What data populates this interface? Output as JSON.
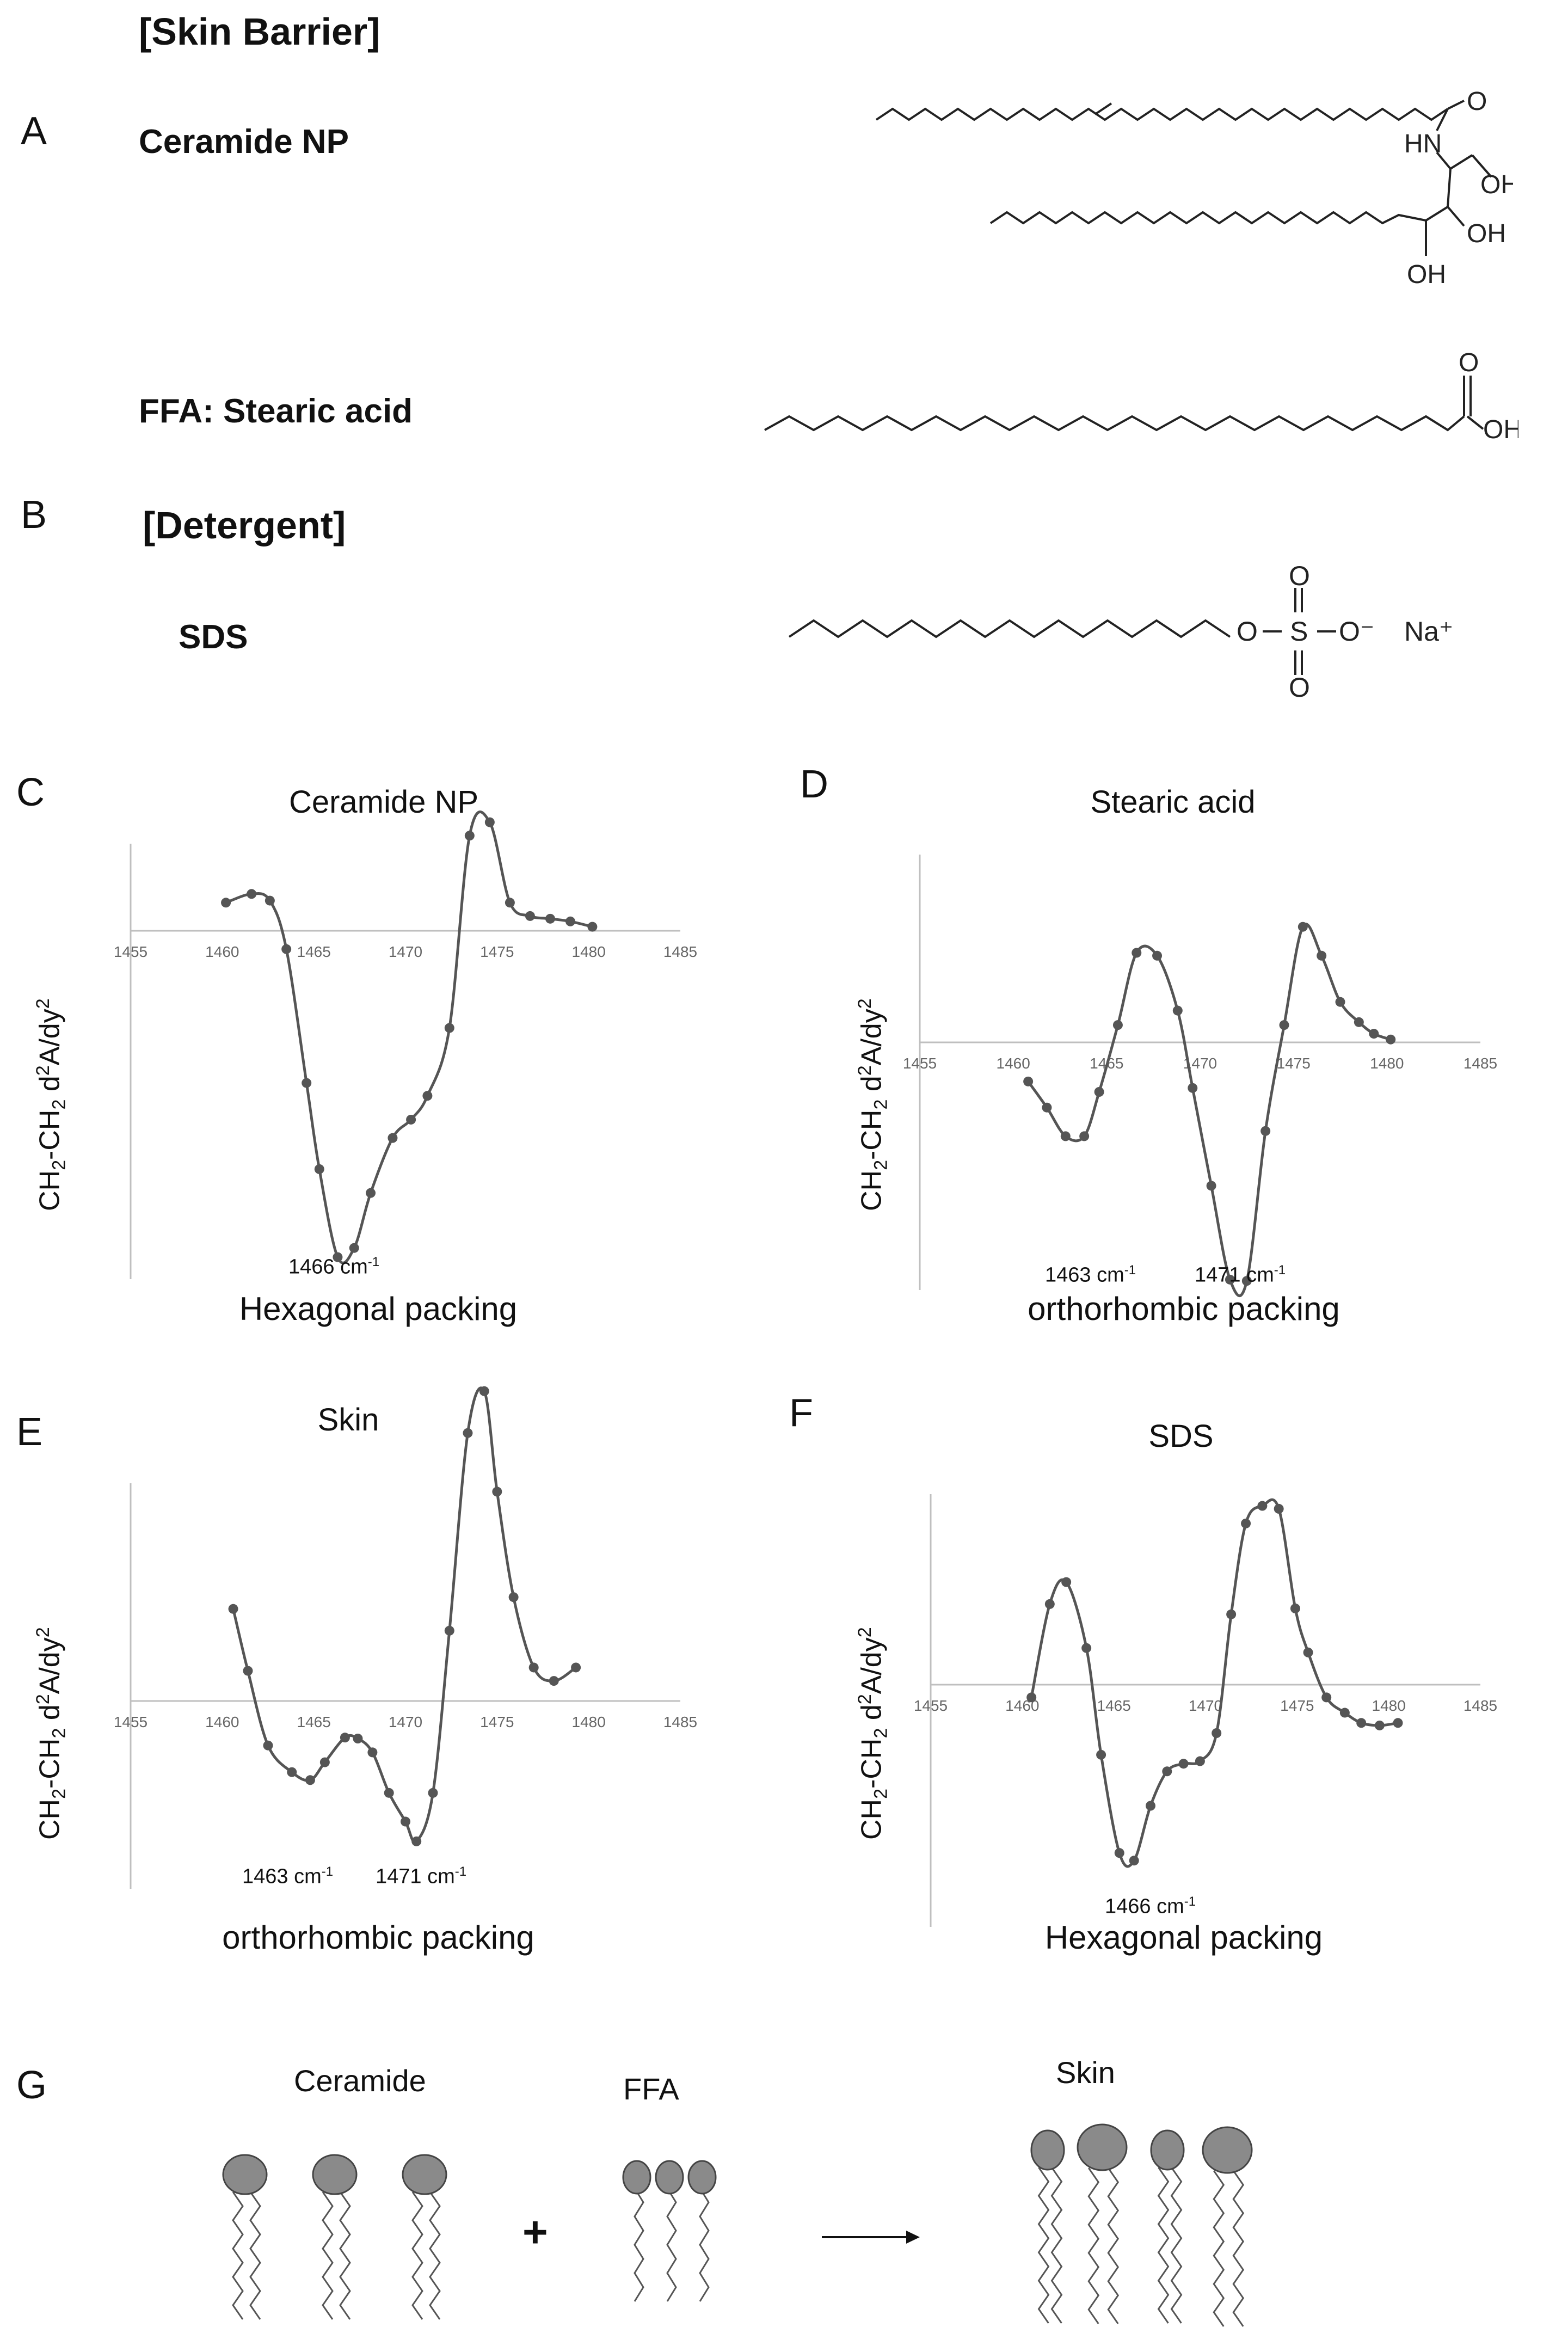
{
  "panels": {
    "A": "A",
    "B": "B",
    "C": "C",
    "D": "D",
    "E": "E",
    "F": "F",
    "G": "G"
  },
  "section_a": {
    "heading": "[Skin Barrier]",
    "ceramide_label": "Ceramide NP",
    "ffa_label": "FFA: Stearic acid"
  },
  "section_b": {
    "heading": "[Detergent]",
    "sds_label": "SDS"
  },
  "structures": {
    "ceramide": {
      "o": "O",
      "hn": "HN",
      "oh1": "OH",
      "oh2": "OH",
      "oh3": "OH"
    },
    "stearic": {
      "o": "O",
      "oh": "OH"
    },
    "sds": {
      "o_top": "O",
      "o_bottom": "O",
      "o_link": "O",
      "s": "S",
      "o_minus": "O⁻",
      "na": "Na⁺"
    }
  },
  "y_axis_label": {
    "ch2": "CH",
    "sub2": "2",
    "dash": "-CH",
    "sub2b": "2",
    "d": " d",
    "sup2": "2",
    "rest": "A/dy",
    "sup2b": "2"
  },
  "chart_data": [
    {
      "panel": "C",
      "type": "line",
      "title": "Ceramide NP",
      "x_ticks": [
        1455,
        1460,
        1465,
        1470,
        1475,
        1480,
        1485
      ],
      "xlim": [
        1455,
        1485
      ],
      "ylim": [
        -1.9,
        1.3
      ],
      "x": [
        1460.2,
        1461.6,
        1462.6,
        1463.5,
        1464.6,
        1465.3,
        1466.3,
        1467.2,
        1468.1,
        1469.3,
        1470.3,
        1471.2,
        1472.4,
        1473.5,
        1474.6,
        1475.7,
        1476.8,
        1477.9,
        1479.0,
        1480.2
      ],
      "y": [
        0.42,
        0.55,
        0.45,
        -0.1,
        -0.83,
        -1.3,
        -1.78,
        -1.73,
        -1.43,
        -1.13,
        -1.03,
        -0.9,
        -0.53,
        1.42,
        1.62,
        0.42,
        0.22,
        0.18,
        0.14,
        0.06
      ],
      "peak_label": {
        "value": "1466 cm",
        "sup": "-1"
      },
      "packing": "Hexagonal packing"
    },
    {
      "panel": "D",
      "type": "line",
      "title": "Stearic acid",
      "x_ticks": [
        1455,
        1460,
        1465,
        1470,
        1475,
        1480,
        1485
      ],
      "xlim": [
        1455,
        1485
      ],
      "ylim": [
        -1.9,
        1.3
      ],
      "x": [
        1460.8,
        1461.8,
        1462.8,
        1463.8,
        1464.6,
        1465.6,
        1466.6,
        1467.7,
        1468.8,
        1469.6,
        1470.6,
        1471.6,
        1472.5,
        1473.5,
        1474.5,
        1475.5,
        1476.5,
        1477.5,
        1478.5,
        1479.3,
        1480.2
      ],
      "y": [
        -0.3,
        -0.5,
        -0.72,
        -0.72,
        -0.38,
        0.12,
        0.62,
        0.6,
        0.22,
        -0.35,
        -1.1,
        -1.82,
        -1.83,
        -0.68,
        0.12,
        0.8,
        0.6,
        0.28,
        0.14,
        0.06,
        0.02
      ],
      "peak_labels": [
        {
          "value": "1463 cm",
          "sup": "-1"
        },
        {
          "value": "1471 cm",
          "sup": "-1"
        }
      ],
      "packing": "orthorhombic packing"
    },
    {
      "panel": "E",
      "type": "line",
      "title": "Skin",
      "x_ticks": [
        1455,
        1460,
        1465,
        1470,
        1475,
        1480,
        1485
      ],
      "xlim": [
        1455,
        1485
      ],
      "ylim": [
        -1.9,
        1.3
      ],
      "x": [
        1460.6,
        1461.4,
        1462.5,
        1463.8,
        1464.8,
        1465.6,
        1466.7,
        1467.4,
        1468.2,
        1469.1,
        1470.0,
        1470.6,
        1471.5,
        1472.4,
        1473.4,
        1474.3,
        1475.0,
        1475.9,
        1477.0,
        1478.1,
        1479.3
      ],
      "y": [
        0.55,
        0.18,
        -0.45,
        -0.72,
        -0.8,
        -0.62,
        -0.37,
        -0.38,
        -0.52,
        -0.93,
        -1.22,
        -1.42,
        -0.93,
        0.42,
        1.6,
        1.85,
        1.25,
        0.62,
        0.2,
        0.12,
        0.2
      ],
      "peak_labels": [
        {
          "value": "1463 cm",
          "sup": "-1"
        },
        {
          "value": "1471 cm",
          "sup": "-1"
        }
      ],
      "packing": "orthorhombic packing"
    },
    {
      "panel": "F",
      "type": "line",
      "title": "SDS",
      "x_ticks": [
        1455,
        1460,
        1465,
        1470,
        1475,
        1480,
        1485
      ],
      "xlim": [
        1455,
        1485
      ],
      "ylim": [
        -1.9,
        1.3
      ],
      "x": [
        1460.5,
        1461.5,
        1462.4,
        1463.5,
        1464.3,
        1465.3,
        1466.1,
        1467.0,
        1467.9,
        1468.8,
        1469.7,
        1470.6,
        1471.4,
        1472.2,
        1473.1,
        1474.0,
        1474.9,
        1475.6,
        1476.6,
        1477.6,
        1478.5,
        1479.5,
        1480.5
      ],
      "y": [
        -0.1,
        0.55,
        0.7,
        0.25,
        -0.55,
        -1.32,
        -1.38,
        -0.95,
        -0.68,
        -0.62,
        -0.6,
        -0.38,
        0.48,
        1.1,
        1.22,
        1.2,
        0.52,
        0.22,
        -0.1,
        -0.22,
        -0.3,
        -0.32,
        -0.3
      ],
      "peak_label": {
        "value": "1466 cm",
        "sup": "-1"
      },
      "packing": "Hexagonal packing"
    }
  ],
  "schematic": {
    "ceramide_label": "Ceramide",
    "ffa_label": "FFA",
    "skin_label": "Skin",
    "plus": "+"
  },
  "colors": {
    "line": "#555555",
    "axis": "#bfbfbf",
    "head": "#8a8a8a"
  }
}
